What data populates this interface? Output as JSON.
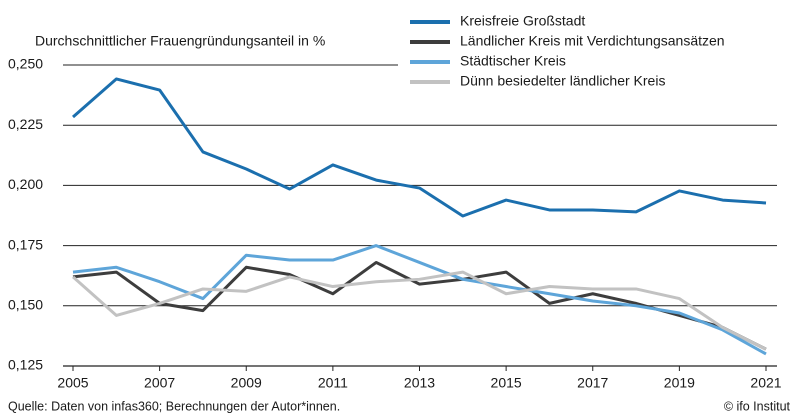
{
  "chart_data": {
    "type": "line",
    "y_label": "Durchschnittlicher Frauengründungsanteil in %",
    "source": "Quelle: Daten von infas360; Berechnungen der Autor*innen.",
    "credit": "© ifo Institut",
    "x": [
      2005,
      2006,
      2007,
      2008,
      2009,
      2010,
      2011,
      2012,
      2013,
      2014,
      2015,
      2016,
      2017,
      2018,
      2019,
      2020,
      2021
    ],
    "xlim": [
      2005,
      2021
    ],
    "xticks": [
      2005,
      2007,
      2009,
      2011,
      2013,
      2015,
      2017,
      2019,
      2021
    ],
    "ylim": [
      0.125,
      0.25
    ],
    "yticks": [
      {
        "value": 0.125,
        "label": "0,125"
      },
      {
        "value": 0.15,
        "label": "0,150"
      },
      {
        "value": 0.175,
        "label": "0,175"
      },
      {
        "value": 0.2,
        "label": "0,200"
      },
      {
        "value": 0.225,
        "label": "0,225"
      },
      {
        "value": 0.25,
        "label": "0,250"
      }
    ],
    "grid": true,
    "legend": "top-right",
    "series": [
      {
        "name": "Kreisfreie Großstadt",
        "color": "#1b6fae",
        "values": [
          0.2284,
          0.2442,
          0.2396,
          0.2139,
          0.2068,
          0.1985,
          0.2085,
          0.2022,
          0.1989,
          0.1873,
          0.1939,
          0.1898,
          0.1898,
          0.189,
          0.1977,
          0.1939,
          0.1927
        ]
      },
      {
        "name": "Ländlicher Kreis mit Verdichtungsansätzen",
        "color": "#3d3d3d",
        "values": [
          0.162,
          0.164,
          0.151,
          0.148,
          0.166,
          0.163,
          0.155,
          0.168,
          0.159,
          0.161,
          0.164,
          0.151,
          0.155,
          0.151,
          0.146,
          0.141,
          0.132
        ]
      },
      {
        "name": "Städtischer Kreis",
        "color": "#5ea5d9",
        "values": [
          0.164,
          0.166,
          0.16,
          0.153,
          0.171,
          0.169,
          0.169,
          0.175,
          0.168,
          0.161,
          0.158,
          0.155,
          0.152,
          0.15,
          0.147,
          0.14,
          0.13
        ]
      },
      {
        "name": "Dünn besiedelter ländlicher Kreis",
        "color": "#c2c2c2",
        "values": [
          0.162,
          0.146,
          0.151,
          0.157,
          0.156,
          0.162,
          0.158,
          0.16,
          0.161,
          0.164,
          0.155,
          0.158,
          0.157,
          0.157,
          0.153,
          0.141,
          0.132
        ]
      }
    ]
  }
}
